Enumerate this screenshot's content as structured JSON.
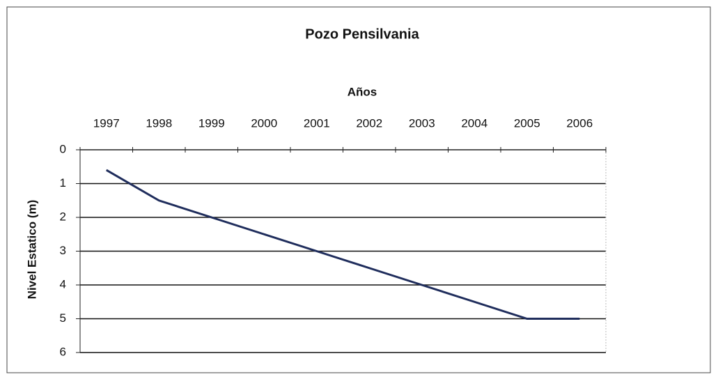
{
  "chart_data": {
    "type": "line",
    "title": "Pozo Pensilvania",
    "x_label": "Años",
    "y_label": "Nivel Estatico (m)",
    "categories": [
      "1997",
      "1998",
      "1999",
      "2000",
      "2001",
      "2002",
      "2003",
      "2004",
      "2005",
      "2006"
    ],
    "values": [
      0.6,
      1.5,
      2.0,
      2.5,
      3.0,
      3.5,
      4.0,
      4.5,
      5.0,
      5.0
    ],
    "color": "#1f2d5c",
    "ylim": [
      0,
      6
    ],
    "yticks": [
      0,
      1,
      2,
      3,
      4,
      5,
      6
    ],
    "y_inverted": true,
    "x_axis_position": "top",
    "grid": true
  }
}
